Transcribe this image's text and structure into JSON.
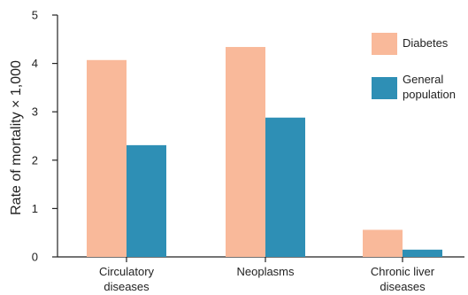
{
  "chart_data": {
    "type": "bar",
    "title": "",
    "xlabel": "",
    "ylabel": "Rate of mortality × 1,000",
    "ylim": [
      0,
      5
    ],
    "yticks": [
      "0",
      "1",
      "2",
      "3",
      "4",
      "5"
    ],
    "grid": false,
    "legend_position": "top-right",
    "categories": [
      [
        "Circulatory",
        "diseases"
      ],
      [
        "Neoplasms"
      ],
      [
        "Chronic liver",
        "diseases"
      ]
    ],
    "series": [
      {
        "name": "Diabetes",
        "label_lines": [
          "Diabetes"
        ],
        "color": "#f9b99a",
        "values": [
          4.07,
          4.34,
          0.56
        ]
      },
      {
        "name": "General population",
        "label_lines": [
          "General",
          "population"
        ],
        "color": "#2e8fb5",
        "values": [
          2.31,
          2.88,
          0.15
        ]
      }
    ]
  }
}
